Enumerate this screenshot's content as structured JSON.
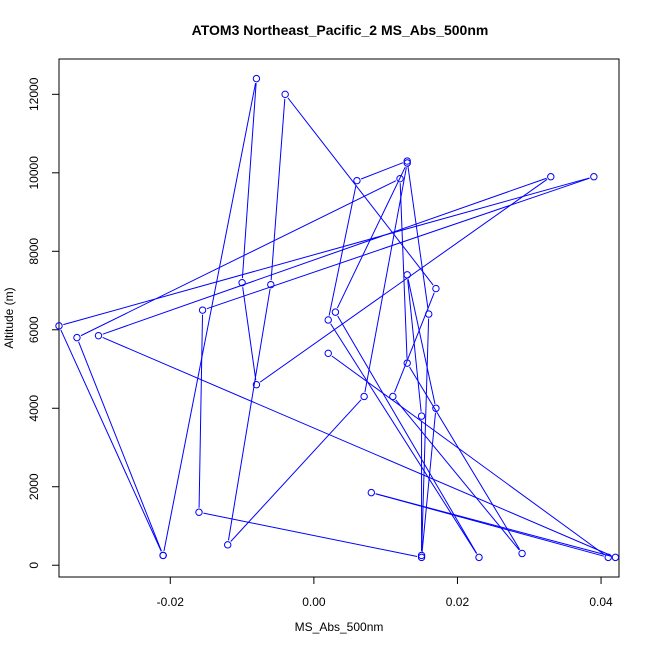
{
  "chart_data": {
    "type": "line",
    "title": "ATOM3 Northeast_Pacific_2 MS_Abs_500nm",
    "xlabel": "MS_Abs_500nm",
    "ylabel": "Altitude (m)",
    "xlim": [
      -0.0355,
      0.0425
    ],
    "ylim": [
      -300,
      12900
    ],
    "xticks": [
      -0.02,
      0.0,
      0.02,
      0.04
    ],
    "xtick_labels": [
      "-0.02",
      "0.00",
      "0.02",
      "0.04"
    ],
    "yticks": [
      0,
      2000,
      4000,
      6000,
      8000,
      10000,
      12000
    ],
    "ytick_labels": [
      "0",
      "2000",
      "4000",
      "6000",
      "8000",
      "10000",
      "12000"
    ],
    "grid": false,
    "series_color": "#0000ff",
    "series": [
      {
        "x": [
          -0.021,
          -0.0355,
          0.039,
          -0.0155,
          -0.016,
          0.015,
          0.017,
          0.013,
          0.015,
          0.015,
          0.016,
          0.013,
          0.006,
          0.002,
          0.023,
          0.003,
          0.013,
          0.007,
          -0.012,
          -0.006,
          -0.004,
          0.017,
          0.011,
          0.029,
          0.013,
          0.012,
          -0.033,
          -0.021,
          -0.008,
          -0.01,
          -0.008,
          0.033,
          -0.03,
          0.042,
          0.008,
          0.041,
          0.002
        ],
        "y": [
          250,
          6100,
          9900,
          6500,
          1350,
          200,
          4000,
          7400,
          3800,
          250,
          6400,
          10300,
          9800,
          6250,
          200,
          6450,
          10250,
          4300,
          520,
          7150,
          12000,
          7050,
          4300,
          300,
          5150,
          9850,
          5800,
          250,
          12400,
          7200,
          4600,
          9900,
          5850,
          200,
          1850,
          200,
          5400
        ]
      }
    ]
  }
}
